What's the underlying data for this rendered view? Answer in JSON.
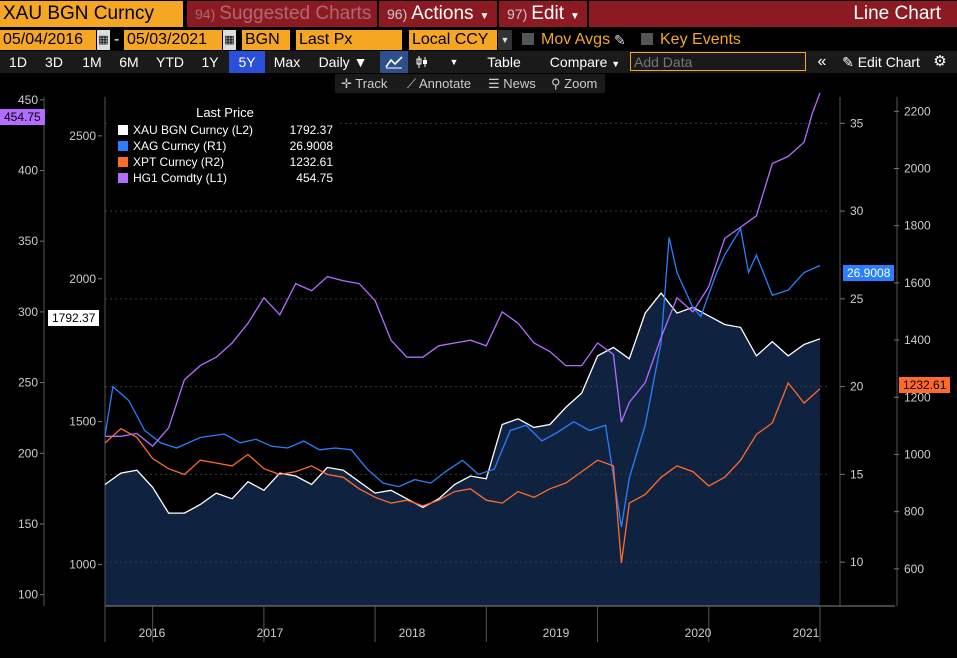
{
  "header": {
    "ticker": "XAU BGN Curncy",
    "menus": [
      {
        "num": "94)",
        "label": "Suggested Charts"
      },
      {
        "num": "96)",
        "label": "Actions"
      },
      {
        "num": "97)",
        "label": "Edit"
      }
    ],
    "chart_kind": "Line Chart"
  },
  "settings": {
    "start_date": "05/04/2016",
    "dash": "-",
    "end_date": "05/03/2021",
    "source": "BGN",
    "field": "Last Px",
    "currency": "Local CCY",
    "mov_avgs": "Mov Avgs",
    "key_events": "Key Events"
  },
  "toolbar": {
    "periods": [
      "1D",
      "3D",
      "1M",
      "6M",
      "YTD",
      "1Y",
      "5Y",
      "Max"
    ],
    "selected_period": "5Y",
    "frequency": "Daily",
    "table": "Table",
    "compare": "Compare",
    "add_data_placeholder": "Add Data",
    "edit_chart": "Edit Chart"
  },
  "subtools": {
    "track": "Track",
    "annotate": "Annotate",
    "news": "News",
    "zoom": "Zoom"
  },
  "legend": {
    "title": "Last Price",
    "rows": [
      {
        "name": "XAU BGN Curncy  (L2)",
        "value": "1792.37",
        "color": "#ffffff"
      },
      {
        "name": "XAG Curncy  (R1)",
        "value": "26.9008",
        "color": "#2a7fff"
      },
      {
        "name": "XPT Curncy  (R2)",
        "value": "1232.61",
        "color": "#ff6a2a"
      },
      {
        "name": "HG1 Comdty  (L1)",
        "value": "454.75",
        "color": "#b46bff"
      }
    ]
  },
  "value_tags": {
    "hg1": "454.75",
    "xau": "1792.37",
    "xag": "26.9008",
    "xpt": "1232.61"
  },
  "chart_data": {
    "type": "line",
    "x_ticks": [
      "2016",
      "2017",
      "2018",
      "2019",
      "2020",
      "2021"
    ],
    "axes": {
      "L1": {
        "ticks": [
          100,
          150,
          200,
          250,
          300,
          350,
          400,
          450
        ],
        "range": [
          92,
          452
        ]
      },
      "L2": {
        "ticks": [
          1000,
          1500,
          2000,
          2500
        ],
        "range": [
          855,
          2636
        ]
      },
      "R1": {
        "ticks": [
          10,
          15,
          20,
          25,
          30,
          35
        ],
        "range": [
          7.5,
          36.5
        ]
      },
      "R2": {
        "ticks": [
          600,
          800,
          1000,
          1200,
          1400,
          1600,
          1800,
          2000,
          2200
        ],
        "range": [
          470,
          2250
        ]
      }
    },
    "series": [
      {
        "name": "XAU BGN Curncy (L2)",
        "axis": "L2",
        "color": "#ffffff",
        "values": [
          [
            0,
            1280
          ],
          [
            2,
            1320
          ],
          [
            4,
            1330
          ],
          [
            6,
            1270
          ],
          [
            8,
            1180
          ],
          [
            10,
            1180
          ],
          [
            12,
            1210
          ],
          [
            14,
            1250
          ],
          [
            16,
            1230
          ],
          [
            18,
            1290
          ],
          [
            20,
            1260
          ],
          [
            22,
            1320
          ],
          [
            24,
            1310
          ],
          [
            26,
            1280
          ],
          [
            28,
            1340
          ],
          [
            30,
            1330
          ],
          [
            32,
            1290
          ],
          [
            34,
            1250
          ],
          [
            36,
            1260
          ],
          [
            38,
            1230
          ],
          [
            40,
            1200
          ],
          [
            42,
            1230
          ],
          [
            44,
            1280
          ],
          [
            46,
            1310
          ],
          [
            48,
            1300
          ],
          [
            50,
            1490
          ],
          [
            52,
            1510
          ],
          [
            54,
            1480
          ],
          [
            56,
            1490
          ],
          [
            58,
            1550
          ],
          [
            60,
            1600
          ],
          [
            62,
            1730
          ],
          [
            64,
            1760
          ],
          [
            66,
            1720
          ],
          [
            68,
            1880
          ],
          [
            70,
            1950
          ],
          [
            72,
            1880
          ],
          [
            74,
            1900
          ],
          [
            76,
            1870
          ],
          [
            78,
            1840
          ],
          [
            80,
            1830
          ],
          [
            82,
            1730
          ],
          [
            84,
            1780
          ],
          [
            86,
            1730
          ],
          [
            88,
            1770
          ],
          [
            90,
            1790
          ]
        ]
      },
      {
        "name": "XAG Curncy (R1)",
        "axis": "R1",
        "color": "#2a7fff",
        "values": [
          [
            0,
            17.2
          ],
          [
            1,
            20.0
          ],
          [
            3,
            19.2
          ],
          [
            5,
            17.5
          ],
          [
            7,
            16.8
          ],
          [
            9,
            16.5
          ],
          [
            12,
            17.1
          ],
          [
            15,
            17.3
          ],
          [
            17,
            16.8
          ],
          [
            19,
            17.0
          ],
          [
            21,
            16.6
          ],
          [
            23,
            16.5
          ],
          [
            25,
            16.9
          ],
          [
            27,
            16.4
          ],
          [
            29,
            16.5
          ],
          [
            31,
            16.4
          ],
          [
            33,
            15.3
          ],
          [
            35,
            14.5
          ],
          [
            37,
            14.3
          ],
          [
            39,
            14.7
          ],
          [
            41,
            14.5
          ],
          [
            43,
            15.2
          ],
          [
            45,
            15.8
          ],
          [
            47,
            15.0
          ],
          [
            49,
            15.3
          ],
          [
            51,
            17.5
          ],
          [
            53,
            17.8
          ],
          [
            55,
            16.9
          ],
          [
            57,
            17.4
          ],
          [
            59,
            18.0
          ],
          [
            61,
            17.5
          ],
          [
            63,
            17.8
          ],
          [
            65,
            12.0
          ],
          [
            66,
            14.8
          ],
          [
            68,
            17.8
          ],
          [
            70,
            22.5
          ],
          [
            71,
            28.5
          ],
          [
            72,
            26.5
          ],
          [
            74,
            24.5
          ],
          [
            75,
            24.0
          ],
          [
            77,
            26.5
          ],
          [
            78,
            27.5
          ],
          [
            80,
            29.0
          ],
          [
            81,
            26.5
          ],
          [
            82,
            27.5
          ],
          [
            84,
            25.2
          ],
          [
            86,
            25.5
          ],
          [
            88,
            26.5
          ],
          [
            90,
            26.9
          ]
        ]
      },
      {
        "name": "XPT Curncy (R2)",
        "axis": "R2",
        "color": "#ff6a2a",
        "values": [
          [
            0,
            1040
          ],
          [
            2,
            1090
          ],
          [
            4,
            1060
          ],
          [
            6,
            985
          ],
          [
            8,
            950
          ],
          [
            10,
            930
          ],
          [
            12,
            980
          ],
          [
            14,
            970
          ],
          [
            16,
            960
          ],
          [
            18,
            1000
          ],
          [
            20,
            950
          ],
          [
            22,
            930
          ],
          [
            24,
            940
          ],
          [
            26,
            960
          ],
          [
            28,
            930
          ],
          [
            30,
            920
          ],
          [
            32,
            880
          ],
          [
            34,
            850
          ],
          [
            36,
            830
          ],
          [
            38,
            840
          ],
          [
            40,
            820
          ],
          [
            42,
            840
          ],
          [
            44,
            870
          ],
          [
            46,
            880
          ],
          [
            48,
            840
          ],
          [
            50,
            830
          ],
          [
            52,
            870
          ],
          [
            54,
            850
          ],
          [
            56,
            880
          ],
          [
            58,
            900
          ],
          [
            60,
            940
          ],
          [
            62,
            980
          ],
          [
            64,
            960
          ],
          [
            65,
            620
          ],
          [
            66,
            830
          ],
          [
            68,
            860
          ],
          [
            70,
            920
          ],
          [
            72,
            960
          ],
          [
            74,
            940
          ],
          [
            76,
            890
          ],
          [
            78,
            920
          ],
          [
            80,
            980
          ],
          [
            82,
            1070
          ],
          [
            84,
            1110
          ],
          [
            86,
            1250
          ],
          [
            88,
            1180
          ],
          [
            90,
            1230
          ]
        ]
      },
      {
        "name": "HG1 Comdty (L1)",
        "axis": "L1",
        "color": "#b46bff",
        "values": [
          [
            0,
            212
          ],
          [
            2,
            212
          ],
          [
            4,
            214
          ],
          [
            6,
            205
          ],
          [
            8,
            218
          ],
          [
            10,
            252
          ],
          [
            12,
            262
          ],
          [
            14,
            268
          ],
          [
            16,
            278
          ],
          [
            18,
            292
          ],
          [
            20,
            310
          ],
          [
            22,
            298
          ],
          [
            24,
            320
          ],
          [
            26,
            315
          ],
          [
            28,
            325
          ],
          [
            30,
            322
          ],
          [
            32,
            320
          ],
          [
            34,
            308
          ],
          [
            36,
            280
          ],
          [
            38,
            268
          ],
          [
            40,
            268
          ],
          [
            42,
            276
          ],
          [
            44,
            278
          ],
          [
            46,
            280
          ],
          [
            48,
            276
          ],
          [
            50,
            300
          ],
          [
            52,
            292
          ],
          [
            54,
            278
          ],
          [
            56,
            272
          ],
          [
            58,
            262
          ],
          [
            60,
            262
          ],
          [
            62,
            278
          ],
          [
            64,
            270
          ],
          [
            65,
            222
          ],
          [
            66,
            236
          ],
          [
            68,
            250
          ],
          [
            70,
            282
          ],
          [
            72,
            310
          ],
          [
            74,
            300
          ],
          [
            76,
            318
          ],
          [
            78,
            352
          ],
          [
            80,
            360
          ],
          [
            82,
            368
          ],
          [
            84,
            405
          ],
          [
            86,
            410
          ],
          [
            88,
            420
          ],
          [
            89,
            440
          ],
          [
            90,
            455
          ]
        ]
      }
    ]
  }
}
